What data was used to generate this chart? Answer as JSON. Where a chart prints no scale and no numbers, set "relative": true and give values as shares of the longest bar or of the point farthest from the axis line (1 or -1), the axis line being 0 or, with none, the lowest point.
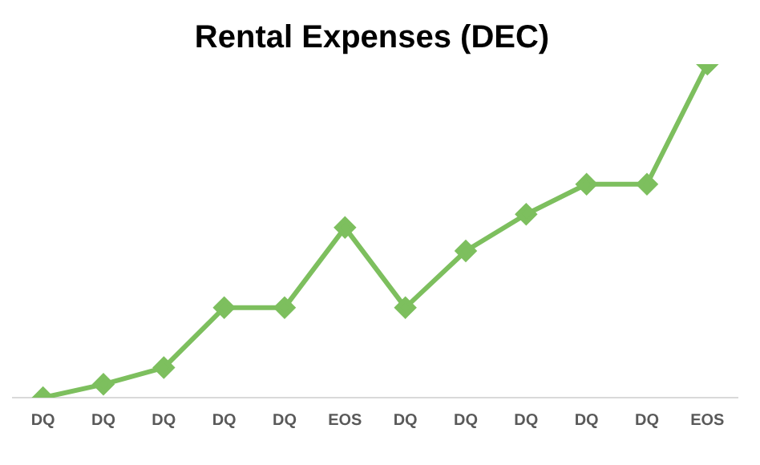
{
  "chart_data": {
    "type": "line",
    "title": "Rental Expenses (DEC)",
    "relative": true,
    "categories": [
      "DQ",
      "DQ",
      "DQ",
      "DQ",
      "DQ",
      "EOS",
      "DQ",
      "DQ",
      "DQ",
      "DQ",
      "DQ",
      "EOS"
    ],
    "series": [
      {
        "color": "#7dbf5e",
        "values": [
          0,
          0.04,
          0.09,
          0.27,
          0.27,
          0.51,
          0.27,
          0.44,
          0.55,
          0.64,
          0.64,
          1
        ]
      }
    ],
    "marker": "diamond",
    "line_style": "solid",
    "grid": false,
    "legend": false
  }
}
